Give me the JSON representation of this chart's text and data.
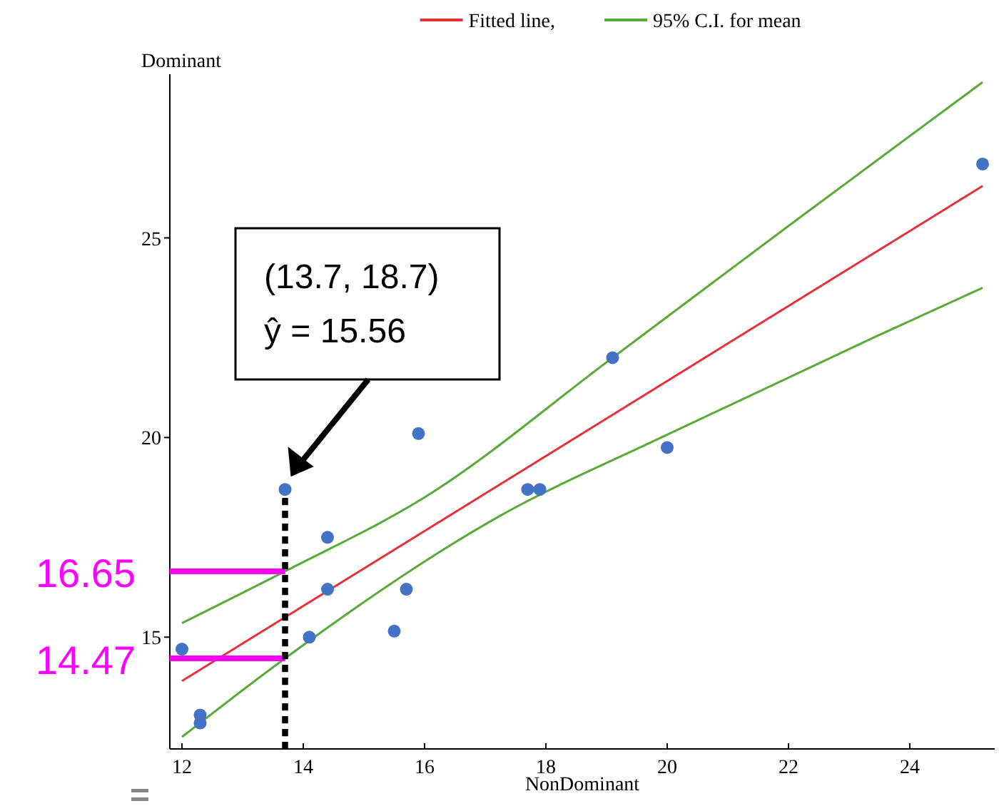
{
  "chart_data": {
    "type": "scatter",
    "xlabel": "NonDominant",
    "ylabel": "Dominant",
    "xlim": [
      11.8,
      25.4
    ],
    "ylim": [
      12.2,
      29.1
    ],
    "xticks": [
      12,
      14,
      16,
      18,
      20,
      22,
      24
    ],
    "yticks": [
      15,
      20,
      25
    ],
    "grid": false,
    "legend": "top",
    "line_style": "solid",
    "ref_lines": [
      {
        "axis": "x",
        "value": 13.7,
        "color": "#000000",
        "line_style": "dotted"
      },
      {
        "axis": "y",
        "value": 16.65,
        "label": "16.65",
        "color": "#ff00ff"
      },
      {
        "axis": "y",
        "value": 14.47,
        "label": "14.47",
        "color": "#ff00ff"
      }
    ],
    "series": [
      {
        "marker": "circle",
        "color": "#4472c4",
        "x": [
          12.0,
          12.3,
          12.3,
          13.7,
          14.1,
          14.4,
          14.4,
          15.5,
          15.7,
          15.9,
          17.7,
          17.9,
          19.1,
          20.0,
          25.2
        ],
        "values": [
          14.7,
          13.05,
          12.85,
          18.7,
          15.0,
          17.5,
          16.2,
          15.15,
          16.2,
          20.1,
          18.7,
          18.7,
          22.0,
          19.75,
          26.85
        ]
      },
      {
        "type": "line",
        "marker": "none",
        "name": "Fitted line,",
        "color": "#e8303a",
        "x": [
          12.0,
          25.2
        ],
        "values": [
          13.9,
          26.3
        ]
      },
      {
        "type": "line",
        "marker": "none",
        "name": "95% C.I. for mean",
        "color": "#5aaa3a",
        "x": [
          12.0,
          13.7,
          16.0,
          19.1,
          22.0,
          25.2
        ],
        "values": [
          15.35,
          16.65,
          18.5,
          22.0,
          25.3,
          28.9
        ]
      },
      {
        "type": "line",
        "marker": "none",
        "color": "#5aaa3a",
        "x": [
          12.0,
          13.7,
          17.2,
          20.0,
          23.4,
          25.2
        ],
        "values": [
          12.5,
          14.47,
          18.0,
          20.07,
          22.5,
          23.75
        ]
      }
    ],
    "annotations": [
      "(13.7, 18.7)\nŷ = 15.56"
    ]
  }
}
